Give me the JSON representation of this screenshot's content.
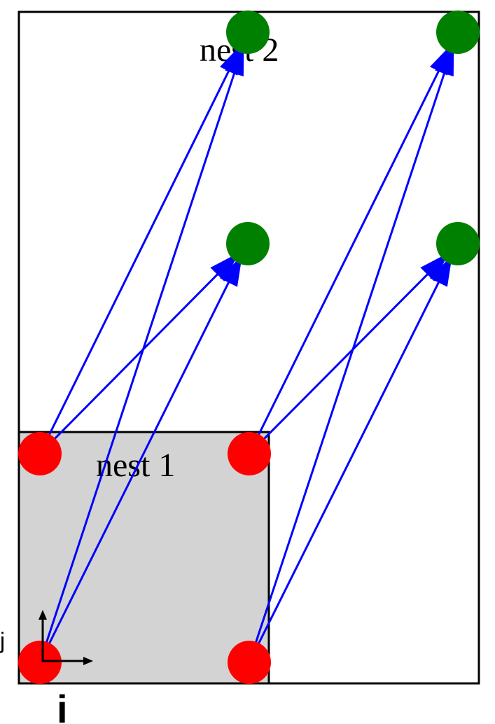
{
  "labels": {
    "nest1": "nest 1",
    "nest2": "nest 2",
    "axis_i": "i",
    "axis_j": "j"
  },
  "colors": {
    "nest1_fill": "#d3d3d3",
    "nest2_fill": "#ffffff",
    "border": "#000000",
    "source_node": "#ff0000",
    "target_node": "#008000",
    "arrow": "#0000ff"
  },
  "nodes": {
    "source": [
      {
        "id": "s1",
        "grid": "nest 1"
      },
      {
        "id": "s2",
        "grid": "nest 1"
      },
      {
        "id": "s3",
        "grid": "nest 1"
      },
      {
        "id": "s4",
        "grid": "nest 1"
      }
    ],
    "target": [
      {
        "id": "t1",
        "grid": "nest 2"
      },
      {
        "id": "t2",
        "grid": "nest 2"
      },
      {
        "id": "t3",
        "grid": "nest 2"
      },
      {
        "id": "t4",
        "grid": "nest 2"
      }
    ]
  },
  "edges": [
    {
      "from": "s1",
      "to": "t1"
    },
    {
      "from": "s1",
      "to": "t2"
    },
    {
      "from": "s3",
      "to": "t1"
    },
    {
      "from": "s3",
      "to": "t2"
    },
    {
      "from": "s2",
      "to": "t3"
    },
    {
      "from": "s2",
      "to": "t4"
    },
    {
      "from": "s4",
      "to": "t3"
    },
    {
      "from": "s4",
      "to": "t4"
    }
  ]
}
